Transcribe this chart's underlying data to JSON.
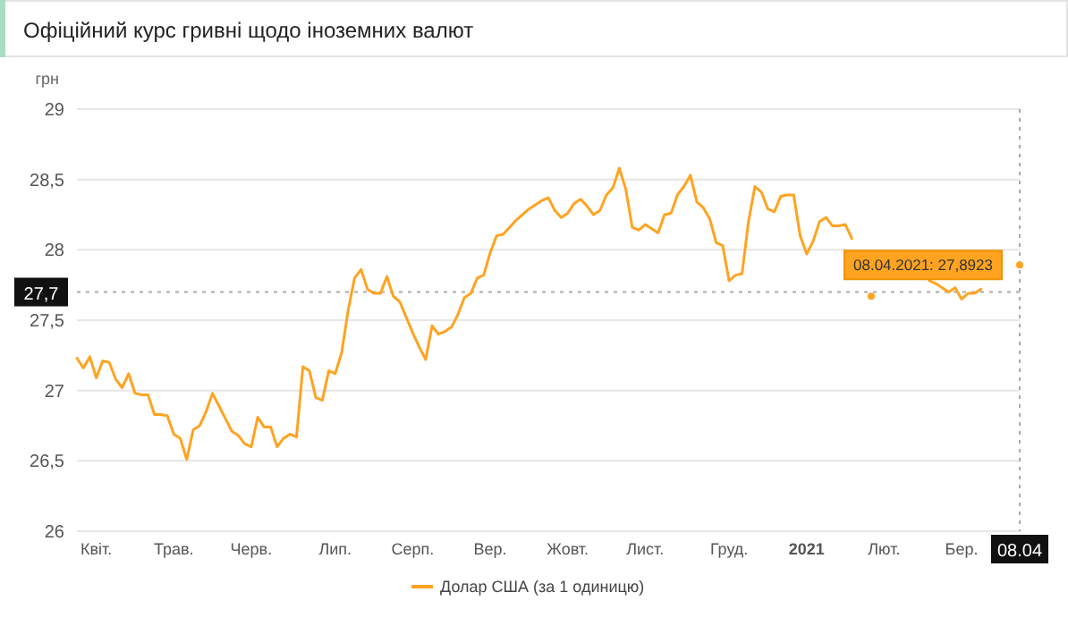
{
  "chart_data": {
    "type": "line",
    "title": "Офіційний курс гривні щодо іноземних валют",
    "ylabel": "грн",
    "categories": [
      null,
      null,
      null,
      "Квіт.",
      null,
      null,
      null,
      null,
      null,
      null,
      null,
      null,
      null,
      null,
      null,
      "Трав.",
      null,
      null,
      null,
      null,
      null,
      null,
      null,
      null,
      null,
      null,
      null,
      "Черв.",
      null,
      null,
      null,
      null,
      null,
      null,
      null,
      null,
      null,
      null,
      null,
      null,
      "Лип.",
      null,
      null,
      null,
      null,
      null,
      null,
      null,
      null,
      null,
      null,
      null,
      "Серп.",
      null,
      null,
      null,
      null,
      null,
      null,
      null,
      null,
      null,
      null,
      null,
      "Вер.",
      null,
      null,
      null,
      null,
      null,
      null,
      null,
      null,
      null,
      null,
      null,
      "Жовт.",
      null,
      null,
      null,
      null,
      null,
      null,
      null,
      null,
      null,
      null,
      null,
      "Лист.",
      null,
      null,
      null,
      null,
      null,
      null,
      null,
      null,
      null,
      null,
      null,
      null,
      "Груд.",
      null,
      null,
      null,
      null,
      null,
      null,
      null,
      null,
      null,
      null,
      null,
      "2021",
      null,
      null,
      null,
      null,
      null,
      null,
      null,
      null,
      null,
      null,
      null,
      "Лют.",
      null,
      null,
      null,
      null,
      null,
      null,
      null,
      null,
      null,
      null,
      null,
      "Бер.",
      null,
      null,
      null,
      null,
      null,
      null,
      null,
      null,
      "08.04"
    ],
    "ylim": [
      26,
      29
    ],
    "yticks": [
      26,
      {
        "value": 26.5,
        "label": "26,5"
      },
      27,
      {
        "value": 27.5,
        "label": "27,5"
      },
      28,
      {
        "value": 28.5,
        "label": "28,5"
      },
      29
    ],
    "grid": "y",
    "legend": "bottom",
    "marker": "none",
    "line_style": "solid",
    "series": [
      {
        "name": "Долар США (за 1 одиницю)",
        "color": "#ffa320",
        "values": [
          27.23,
          27.16,
          27.24,
          27.09,
          27.21,
          27.2,
          27.08,
          27.02,
          27.12,
          26.98,
          26.97,
          26.97,
          26.83,
          26.83,
          26.82,
          26.69,
          26.66,
          26.51,
          26.72,
          26.75,
          26.85,
          26.98,
          26.89,
          26.8,
          26.71,
          26.68,
          26.62,
          26.6,
          26.81,
          26.74,
          26.74,
          26.6,
          26.66,
          26.69,
          26.67,
          27.17,
          27.14,
          26.95,
          26.93,
          27.14,
          27.12,
          27.27,
          27.57,
          27.8,
          27.86,
          27.72,
          27.69,
          27.69,
          27.81,
          27.67,
          27.63,
          27.52,
          27.41,
          27.31,
          27.22,
          27.46,
          27.4,
          27.42,
          27.45,
          27.54,
          27.66,
          27.69,
          27.8,
          27.82,
          27.98,
          28.1,
          28.11,
          28.16,
          28.21,
          28.25,
          28.29,
          28.32,
          28.35,
          28.37,
          28.28,
          28.23,
          28.26,
          28.33,
          28.36,
          28.31,
          28.25,
          28.28,
          28.39,
          28.44,
          28.58,
          28.43,
          28.16,
          28.14,
          28.18,
          28.15,
          28.12,
          28.25,
          28.26,
          28.39,
          28.45,
          28.53,
          28.34,
          28.3,
          28.22,
          28.05,
          28.03,
          27.78,
          27.82,
          27.83,
          28.2,
          28.45,
          28.41,
          28.29,
          28.27,
          28.38,
          28.39,
          28.39,
          28.1,
          27.97,
          28.06,
          28.2,
          28.23,
          28.17,
          28.17,
          28.18,
          28.08,
          null,
          null,
          27.67,
          null,
          null,
          null,
          null,
          null,
          null,
          null,
          null,
          27.78,
          27.76,
          27.73,
          27.7,
          27.73,
          27.65,
          27.69,
          27.69,
          27.72,
          null,
          null,
          null,
          null,
          null,
          27.8923
        ]
      }
    ],
    "ref_lines": [
      {
        "axis": "y",
        "value": 27.7,
        "label": "27,7",
        "line_style": "dotted"
      },
      {
        "axis": "x",
        "value": "08.04",
        "line_style": "dotted"
      }
    ],
    "annotations": [
      {
        "text": "08.04.2021: 27,8923",
        "x": "08.04",
        "y": 27.8923
      }
    ]
  }
}
